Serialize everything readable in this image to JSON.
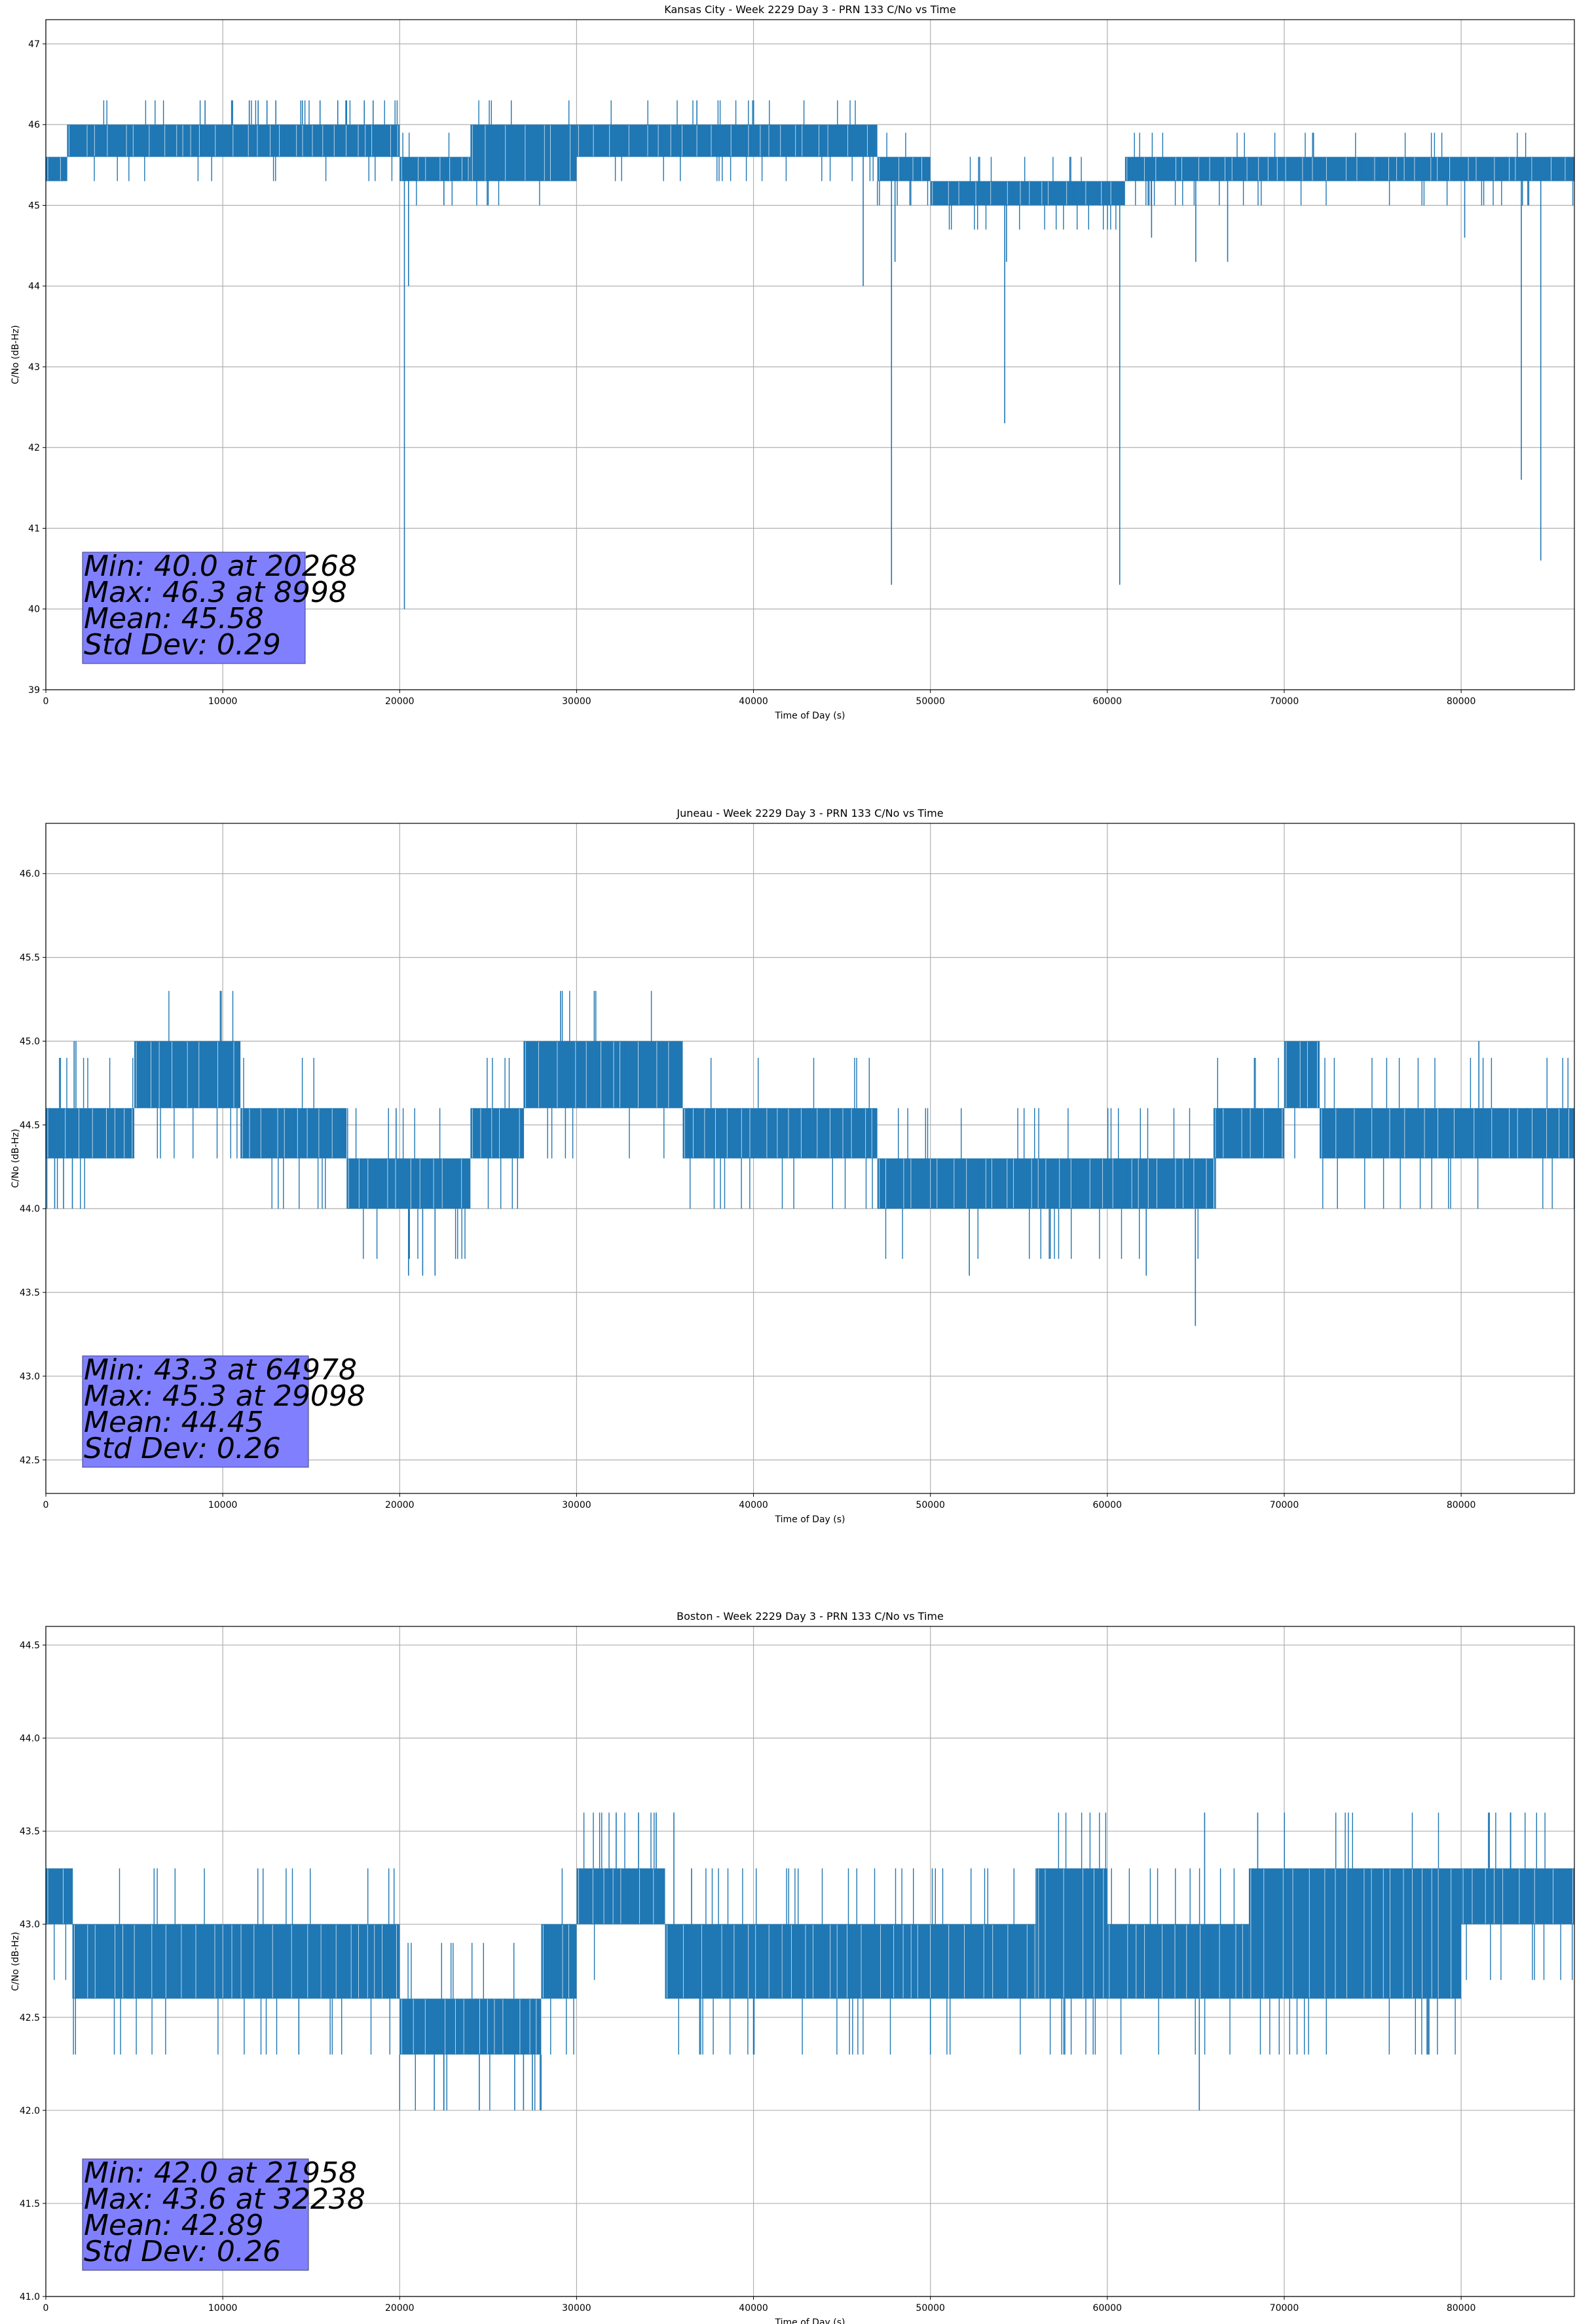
{
  "figure": {
    "background": "#ffffff",
    "line_color": "#1f77b4",
    "stats_box_color": "#8080ff"
  },
  "chart_data": [
    {
      "type": "line",
      "title": "Kansas City - Week 2229 Day 3 - PRN 133 C/No vs Time",
      "xlabel": "Time of Day (s)",
      "ylabel": "C/No (dB-Hz)",
      "xlim": [
        0,
        86400
      ],
      "ylim": [
        39,
        47.3
      ],
      "xticks": [
        0,
        10000,
        20000,
        30000,
        40000,
        50000,
        60000,
        70000,
        80000
      ],
      "yticks": [
        39,
        40,
        41,
        42,
        43,
        44,
        45,
        46,
        47
      ],
      "grid": true,
      "color": "#1f77b4",
      "segments": [
        {
          "x0": 0,
          "x1": 1200,
          "lo": 45.3,
          "hi": 45.6
        },
        {
          "x0": 1200,
          "x1": 20000,
          "lo": 45.6,
          "hi": 46.0
        },
        {
          "x0": 20000,
          "x1": 24000,
          "lo": 45.3,
          "hi": 45.6
        },
        {
          "x0": 24000,
          "x1": 30000,
          "lo": 45.3,
          "hi": 46.0
        },
        {
          "x0": 30000,
          "x1": 47000,
          "lo": 45.6,
          "hi": 46.0
        },
        {
          "x0": 47000,
          "x1": 50000,
          "lo": 45.3,
          "hi": 45.6
        },
        {
          "x0": 50000,
          "x1": 61000,
          "lo": 45.0,
          "hi": 45.3
        },
        {
          "x0": 61000,
          "x1": 75000,
          "lo": 45.3,
          "hi": 45.6
        },
        {
          "x0": 75000,
          "x1": 86400,
          "lo": 45.3,
          "hi": 45.6
        }
      ],
      "spikes": [
        {
          "x": 9000,
          "y": 46.3
        },
        {
          "x": 10500,
          "y": 46.3
        },
        {
          "x": 11500,
          "y": 46.3
        },
        {
          "x": 12000,
          "y": 46.3
        },
        {
          "x": 12500,
          "y": 46.3
        },
        {
          "x": 13000,
          "y": 46.3
        },
        {
          "x": 14500,
          "y": 46.3
        },
        {
          "x": 15500,
          "y": 46.3
        },
        {
          "x": 16500,
          "y": 46.3
        },
        {
          "x": 17000,
          "y": 46.3
        },
        {
          "x": 18000,
          "y": 46.3
        },
        {
          "x": 18500,
          "y": 46.3
        },
        {
          "x": 20268,
          "y": 40.0
        },
        {
          "x": 20500,
          "y": 44.0
        },
        {
          "x": 22500,
          "y": 45.0
        },
        {
          "x": 36800,
          "y": 46.3
        },
        {
          "x": 46200,
          "y": 44.0
        },
        {
          "x": 47800,
          "y": 40.3
        },
        {
          "x": 48000,
          "y": 44.3
        },
        {
          "x": 54200,
          "y": 42.3
        },
        {
          "x": 54300,
          "y": 44.3
        },
        {
          "x": 60700,
          "y": 40.3
        },
        {
          "x": 62500,
          "y": 44.6
        },
        {
          "x": 65000,
          "y": 44.3
        },
        {
          "x": 66800,
          "y": 44.3
        },
        {
          "x": 80200,
          "y": 44.6
        },
        {
          "x": 83400,
          "y": 41.6
        },
        {
          "x": 84500,
          "y": 40.6
        }
      ],
      "stats": [
        "Min: 40.0 at 20268",
        "Max: 46.3 at 8998",
        "Mean: 45.58",
        "Std Dev: 0.29"
      ]
    },
    {
      "type": "line",
      "title": "Juneau - Week 2229 Day 3 - PRN 133 C/No vs Time",
      "xlabel": "Time of Day (s)",
      "ylabel": "C/No (dB-Hz)",
      "xlim": [
        0,
        86400
      ],
      "ylim": [
        42.3,
        46.3
      ],
      "xticks": [
        0,
        10000,
        20000,
        30000,
        40000,
        50000,
        60000,
        70000,
        80000
      ],
      "yticks": [
        42.5,
        43.0,
        43.5,
        44.0,
        44.5,
        45.0,
        45.5,
        46.0
      ],
      "grid": true,
      "color": "#1f77b4",
      "segments": [
        {
          "x0": 0,
          "x1": 5000,
          "lo": 44.3,
          "hi": 44.6
        },
        {
          "x0": 5000,
          "x1": 11000,
          "lo": 44.6,
          "hi": 45.0
        },
        {
          "x0": 11000,
          "x1": 17000,
          "lo": 44.3,
          "hi": 44.6
        },
        {
          "x0": 17000,
          "x1": 24000,
          "lo": 44.0,
          "hi": 44.3
        },
        {
          "x0": 24000,
          "x1": 27000,
          "lo": 44.3,
          "hi": 44.6
        },
        {
          "x0": 27000,
          "x1": 36000,
          "lo": 44.6,
          "hi": 45.0
        },
        {
          "x0": 36000,
          "x1": 47000,
          "lo": 44.3,
          "hi": 44.6
        },
        {
          "x0": 47000,
          "x1": 66000,
          "lo": 44.0,
          "hi": 44.3
        },
        {
          "x0": 66000,
          "x1": 70000,
          "lo": 44.3,
          "hi": 44.6
        },
        {
          "x0": 70000,
          "x1": 72000,
          "lo": 44.6,
          "hi": 45.0
        },
        {
          "x0": 72000,
          "x1": 86400,
          "lo": 44.3,
          "hi": 44.6
        }
      ],
      "spikes": [
        {
          "x": 500,
          "y": 44.0
        },
        {
          "x": 1000,
          "y": 44.0
        },
        {
          "x": 1500,
          "y": 44.0
        },
        {
          "x": 1600,
          "y": 45.0
        },
        {
          "x": 1700,
          "y": 45.0
        },
        {
          "x": 19800,
          "y": 44.6
        },
        {
          "x": 20500,
          "y": 43.6
        },
        {
          "x": 21300,
          "y": 43.6
        },
        {
          "x": 22000,
          "y": 43.6
        },
        {
          "x": 29098,
          "y": 45.3
        },
        {
          "x": 31000,
          "y": 45.3
        },
        {
          "x": 52200,
          "y": 43.6
        },
        {
          "x": 62200,
          "y": 43.6
        },
        {
          "x": 64978,
          "y": 43.3
        },
        {
          "x": 81000,
          "y": 45.0
        }
      ],
      "stats": [
        "Min: 43.3 at 64978",
        "Max: 45.3 at 29098",
        "Mean: 44.45",
        "Std Dev: 0.26"
      ]
    },
    {
      "type": "line",
      "title": "Boston - Week 2229 Day 3 - PRN 133 C/No vs Time",
      "xlabel": "Time of Day (s)",
      "ylabel": "C/No (dB-Hz)",
      "xlim": [
        0,
        86400
      ],
      "ylim": [
        41.0,
        44.6
      ],
      "xticks": [
        0,
        10000,
        20000,
        30000,
        40000,
        50000,
        60000,
        70000,
        80000
      ],
      "yticks": [
        41.0,
        41.5,
        42.0,
        42.5,
        43.0,
        43.5,
        44.0,
        44.5
      ],
      "grid": true,
      "color": "#1f77b4",
      "segments": [
        {
          "x0": 0,
          "x1": 1500,
          "lo": 43.0,
          "hi": 43.3
        },
        {
          "x0": 1500,
          "x1": 20000,
          "lo": 42.6,
          "hi": 43.0
        },
        {
          "x0": 20000,
          "x1": 28000,
          "lo": 42.3,
          "hi": 42.6
        },
        {
          "x0": 28000,
          "x1": 30000,
          "lo": 42.6,
          "hi": 43.0
        },
        {
          "x0": 30000,
          "x1": 35000,
          "lo": 43.0,
          "hi": 43.3
        },
        {
          "x0": 35000,
          "x1": 56000,
          "lo": 42.6,
          "hi": 43.0
        },
        {
          "x0": 56000,
          "x1": 60000,
          "lo": 42.6,
          "hi": 43.3
        },
        {
          "x0": 60000,
          "x1": 68000,
          "lo": 42.6,
          "hi": 43.0
        },
        {
          "x0": 68000,
          "x1": 80000,
          "lo": 42.6,
          "hi": 43.3
        },
        {
          "x0": 80000,
          "x1": 86400,
          "lo": 43.0,
          "hi": 43.3
        }
      ],
      "spikes": [
        {
          "x": 14300,
          "y": 42.3
        },
        {
          "x": 21958,
          "y": 42.0
        },
        {
          "x": 22500,
          "y": 42.0
        },
        {
          "x": 24500,
          "y": 42.0
        },
        {
          "x": 26500,
          "y": 42.0
        },
        {
          "x": 27000,
          "y": 42.0
        },
        {
          "x": 27500,
          "y": 42.0
        },
        {
          "x": 32238,
          "y": 43.6
        },
        {
          "x": 33500,
          "y": 43.6
        },
        {
          "x": 34500,
          "y": 43.6
        },
        {
          "x": 35500,
          "y": 43.6
        },
        {
          "x": 36500,
          "y": 43.3
        },
        {
          "x": 40000,
          "y": 42.3
        },
        {
          "x": 50000,
          "y": 42.3
        },
        {
          "x": 65200,
          "y": 42.0
        },
        {
          "x": 65500,
          "y": 43.6
        },
        {
          "x": 68500,
          "y": 43.6
        },
        {
          "x": 82800,
          "y": 43.6
        }
      ],
      "stats": [
        "Min: 42.0 at 21958",
        "Max: 43.6 at 32238",
        "Mean: 42.89",
        "Std Dev: 0.26"
      ]
    }
  ]
}
